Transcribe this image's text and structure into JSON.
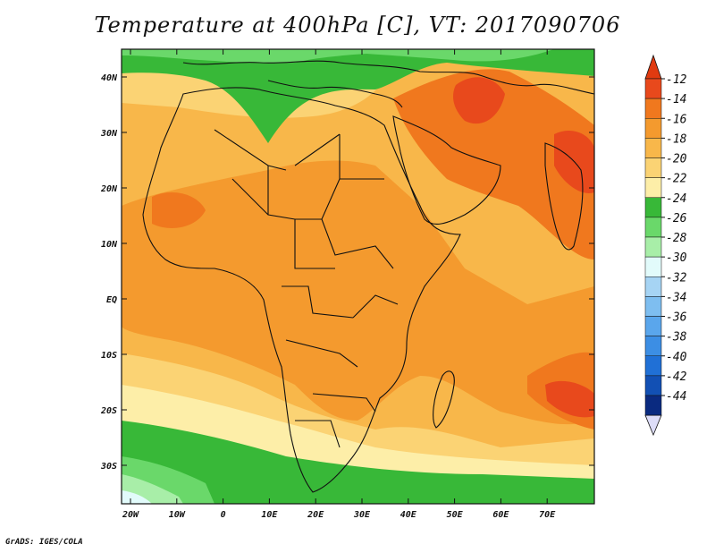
{
  "title": "Temperature at 400hPa [C], VT: 2017090706",
  "credit": "GrADS: IGES/COLA",
  "lat_ticks": [
    "40N",
    "30N",
    "20N",
    "10N",
    "EQ",
    "10S",
    "20S",
    "30S"
  ],
  "lon_ticks": [
    "20W",
    "10W",
    "0",
    "10E",
    "20E",
    "30E",
    "40E",
    "50E",
    "60E",
    "70E"
  ],
  "colorbar": {
    "labels": [
      "-12",
      "-14",
      "-16",
      "-18",
      "-20",
      "-22",
      "-24",
      "-26",
      "-28",
      "-30",
      "-32",
      "-34",
      "-36",
      "-38",
      "-40",
      "-42",
      "-44"
    ],
    "colors": [
      "#e8491c",
      "#f0781e",
      "#f49a2e",
      "#f8b74a",
      "#fbd374",
      "#fdeea8",
      "#38b838",
      "#6ad86a",
      "#a8eea8",
      "#e2fbfb",
      "#a6d4f4",
      "#7ebef0",
      "#5aa6ec",
      "#3c8ee4",
      "#2070d6",
      "#1250b4",
      "#0a2a80"
    ],
    "top_cap_color": "#e03a10",
    "bottom_cap_color": "#ddddf8"
  }
}
